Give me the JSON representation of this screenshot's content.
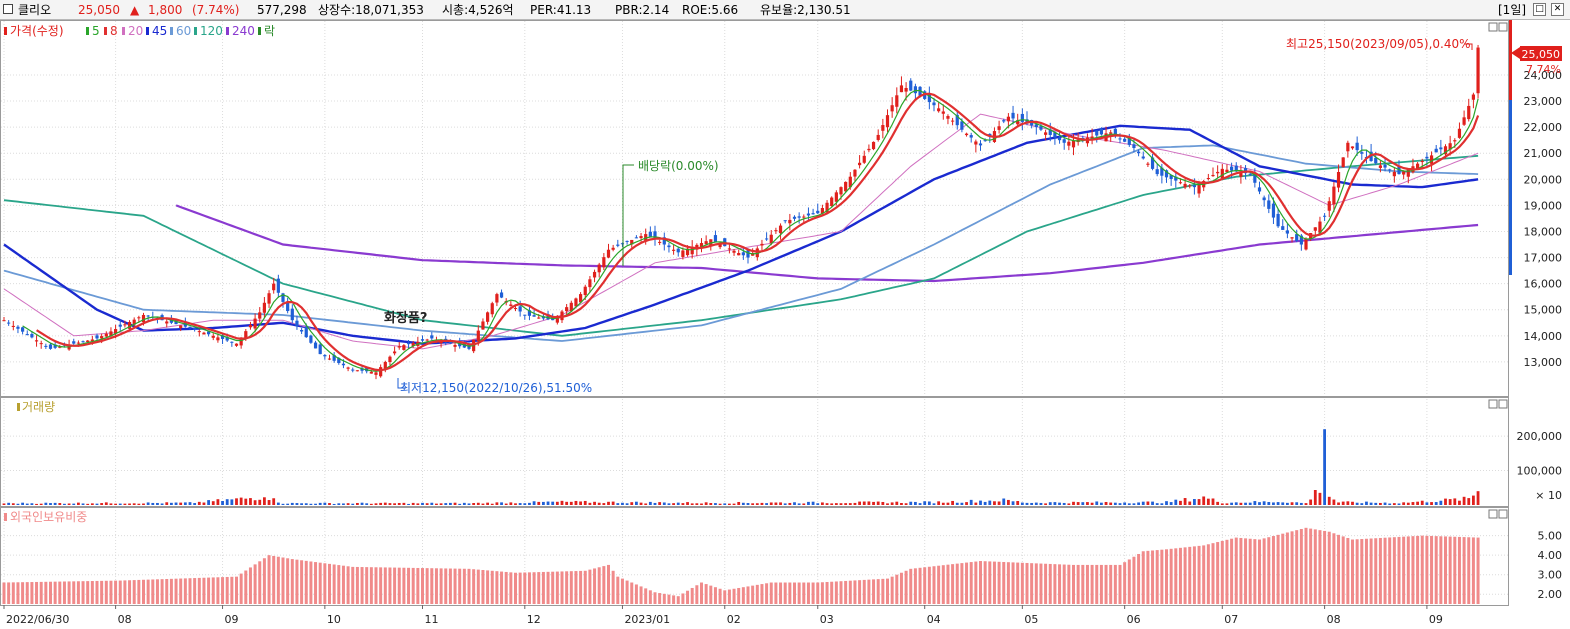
{
  "header": {
    "name": "클리오",
    "price": "25,050",
    "change_arrow": "▲",
    "change": "1,800",
    "change_pct": "(7.74%)",
    "volume": "577,298",
    "listed_shares": "상장수:18,071,353",
    "market_cap": "시총:4,526억",
    "per": "PER:41.13",
    "pbr": "PBR:2.14",
    "roe": "ROE:5.66",
    "float_ratio": "유보율:2,130.51",
    "period": "[1일]"
  },
  "colors": {
    "up": "#e0201c",
    "down": "#1f5fd6",
    "ma5": "#2aa52a",
    "ma8": "#e03030",
    "ma20": "#d070c0",
    "ma45": "#1a2ad0",
    "ma60": "#6b9ad6",
    "ma120": "#2aa58a",
    "ma240": "#8a3ad0",
    "foreign": "#f08a8a"
  },
  "chart_data": [
    {
      "type": "candlestick",
      "legend": {
        "price_label": "가격(수정)",
        "ma_labels": [
          "5",
          "8",
          "20",
          "45",
          "60",
          "120",
          "240"
        ],
        "extra": "락"
      },
      "y_ticks": [
        "24,000",
        "23,000",
        "22,000",
        "21,000",
        "20,000",
        "19,000",
        "18,000",
        "17,000",
        "16,000",
        "15,000",
        "14,000",
        "13,000"
      ],
      "ylim": [
        12000,
        25800
      ],
      "current_price_label": "25,050",
      "current_pct_label": "7.74%",
      "annotations": {
        "high": "최고25,150(2023/09/05),0.40%",
        "low": "최저12,150(2022/10/26),51.50%",
        "dividend": "배당락(0.00%)",
        "note": "화장품?"
      },
      "x_ticks": [
        "2022/06/30",
        "08",
        "09",
        "10",
        "11",
        "12",
        "2023/01",
        "02",
        "03",
        "04",
        "05",
        "06",
        "07",
        "08",
        "09"
      ],
      "close_anchors": [
        [
          0,
          14600
        ],
        [
          10,
          13500
        ],
        [
          20,
          13900
        ],
        [
          30,
          14800
        ],
        [
          40,
          14300
        ],
        [
          50,
          13700
        ],
        [
          55,
          14900
        ],
        [
          58,
          16000
        ],
        [
          62,
          14600
        ],
        [
          68,
          13300
        ],
        [
          75,
          12700
        ],
        [
          80,
          12600
        ],
        [
          85,
          13600
        ],
        [
          92,
          13900
        ],
        [
          100,
          13500
        ],
        [
          106,
          15600
        ],
        [
          112,
          14800
        ],
        [
          118,
          14600
        ],
        [
          124,
          15600
        ],
        [
          130,
          17300
        ],
        [
          138,
          17900
        ],
        [
          145,
          17200
        ],
        [
          152,
          17700
        ],
        [
          160,
          17000
        ],
        [
          168,
          18400
        ],
        [
          175,
          18700
        ],
        [
          182,
          20100
        ],
        [
          188,
          21700
        ],
        [
          193,
          23600
        ],
        [
          197,
          23200
        ],
        [
          202,
          22600
        ],
        [
          206,
          21900
        ],
        [
          210,
          21300
        ],
        [
          216,
          22400
        ],
        [
          222,
          22000
        ],
        [
          228,
          21400
        ],
        [
          233,
          21600
        ],
        [
          238,
          21800
        ],
        [
          243,
          21200
        ],
        [
          248,
          20200
        ],
        [
          256,
          19700
        ],
        [
          262,
          20400
        ],
        [
          268,
          20200
        ],
        [
          274,
          18200
        ],
        [
          279,
          17500
        ],
        [
          284,
          18600
        ],
        [
          289,
          21400
        ],
        [
          294,
          20700
        ],
        [
          300,
          20200
        ],
        [
          306,
          20800
        ],
        [
          312,
          21500
        ],
        [
          316,
          23250
        ],
        [
          317,
          25050
        ]
      ],
      "ma_series": {
        "ma45": [
          [
            0,
            17500
          ],
          [
            20,
            15000
          ],
          [
            30,
            14200
          ],
          [
            45,
            14300
          ],
          [
            60,
            14500
          ],
          [
            75,
            14000
          ],
          [
            90,
            13700
          ],
          [
            110,
            13900
          ],
          [
            125,
            14300
          ],
          [
            140,
            15200
          ],
          [
            160,
            16500
          ],
          [
            180,
            18000
          ],
          [
            200,
            20000
          ],
          [
            220,
            21400
          ],
          [
            240,
            22050
          ],
          [
            255,
            21900
          ],
          [
            270,
            20500
          ],
          [
            290,
            19800
          ],
          [
            305,
            19700
          ],
          [
            317,
            20000
          ]
        ],
        "ma60": [
          [
            0,
            16500
          ],
          [
            30,
            15000
          ],
          [
            60,
            14800
          ],
          [
            90,
            14200
          ],
          [
            120,
            13800
          ],
          [
            150,
            14400
          ],
          [
            180,
            15800
          ],
          [
            200,
            17500
          ],
          [
            225,
            19800
          ],
          [
            245,
            21200
          ],
          [
            260,
            21300
          ],
          [
            280,
            20600
          ],
          [
            300,
            20300
          ],
          [
            317,
            20200
          ]
        ],
        "ma120": [
          [
            0,
            19200
          ],
          [
            30,
            18600
          ],
          [
            60,
            16000
          ],
          [
            90,
            14600
          ],
          [
            120,
            14000
          ],
          [
            150,
            14600
          ],
          [
            180,
            15400
          ],
          [
            200,
            16200
          ],
          [
            220,
            18000
          ],
          [
            245,
            19400
          ],
          [
            265,
            20100
          ],
          [
            290,
            20500
          ],
          [
            317,
            20900
          ]
        ],
        "ma240": [
          [
            37,
            19000
          ],
          [
            60,
            17500
          ],
          [
            90,
            16900
          ],
          [
            120,
            16700
          ],
          [
            150,
            16600
          ],
          [
            175,
            16200
          ],
          [
            200,
            16100
          ],
          [
            225,
            16400
          ],
          [
            245,
            16800
          ],
          [
            270,
            17500
          ],
          [
            295,
            17900
          ],
          [
            317,
            18250
          ]
        ],
        "ma20": [
          [
            0,
            15800
          ],
          [
            15,
            14000
          ],
          [
            30,
            14200
          ],
          [
            45,
            14600
          ],
          [
            60,
            14600
          ],
          [
            75,
            13800
          ],
          [
            90,
            13500
          ],
          [
            105,
            14000
          ],
          [
            120,
            14800
          ],
          [
            140,
            16800
          ],
          [
            160,
            17400
          ],
          [
            180,
            18000
          ],
          [
            195,
            20500
          ],
          [
            210,
            22500
          ],
          [
            230,
            21700
          ],
          [
            250,
            21100
          ],
          [
            270,
            20300
          ],
          [
            285,
            19000
          ],
          [
            300,
            19800
          ],
          [
            317,
            21000
          ]
        ]
      }
    },
    {
      "type": "bar",
      "title": "거래량",
      "y_ticks": [
        "200,000",
        "100,000"
      ],
      "unit": "× 10",
      "ylim": [
        0,
        270000
      ],
      "bar_anchors": [
        [
          0,
          5000
        ],
        [
          40,
          6000
        ],
        [
          55,
          22000
        ],
        [
          56,
          30000
        ],
        [
          58,
          15000
        ],
        [
          60,
          5000
        ],
        [
          100,
          5000
        ],
        [
          120,
          9000
        ],
        [
          150,
          6000
        ],
        [
          200,
          8000
        ],
        [
          215,
          14000
        ],
        [
          220,
          7000
        ],
        [
          250,
          8000
        ],
        [
          258,
          22000
        ],
        [
          262,
          7000
        ],
        [
          275,
          10000
        ],
        [
          280,
          5000
        ],
        [
          283,
          50000
        ],
        [
          284,
          250000
        ],
        [
          285,
          25000
        ],
        [
          287,
          8000
        ],
        [
          300,
          6000
        ],
        [
          315,
          18000
        ],
        [
          316,
          28000
        ],
        [
          317,
          45000
        ]
      ]
    },
    {
      "type": "bar",
      "title": "외국인보유비중",
      "y_ticks": [
        "5.00",
        "4.00",
        "3.00",
        "2.00"
      ],
      "ylim": [
        1.5,
        5.8
      ],
      "value_anchors": [
        [
          0,
          2.6
        ],
        [
          25,
          2.7
        ],
        [
          50,
          2.9
        ],
        [
          57,
          4.0
        ],
        [
          62,
          3.8
        ],
        [
          75,
          3.4
        ],
        [
          100,
          3.3
        ],
        [
          110,
          3.1
        ],
        [
          125,
          3.2
        ],
        [
          130,
          3.5
        ],
        [
          132,
          2.9
        ],
        [
          140,
          2.1
        ],
        [
          145,
          1.9
        ],
        [
          150,
          2.6
        ],
        [
          155,
          2.2
        ],
        [
          165,
          2.6
        ],
        [
          175,
          2.6
        ],
        [
          190,
          2.8
        ],
        [
          195,
          3.3
        ],
        [
          210,
          3.7
        ],
        [
          230,
          3.5
        ],
        [
          240,
          3.5
        ],
        [
          245,
          4.2
        ],
        [
          250,
          4.3
        ],
        [
          258,
          4.5
        ],
        [
          265,
          4.9
        ],
        [
          270,
          4.8
        ],
        [
          275,
          5.1
        ],
        [
          280,
          5.4
        ],
        [
          285,
          5.2
        ],
        [
          290,
          4.8
        ],
        [
          305,
          5.0
        ],
        [
          317,
          4.9
        ]
      ]
    }
  ]
}
